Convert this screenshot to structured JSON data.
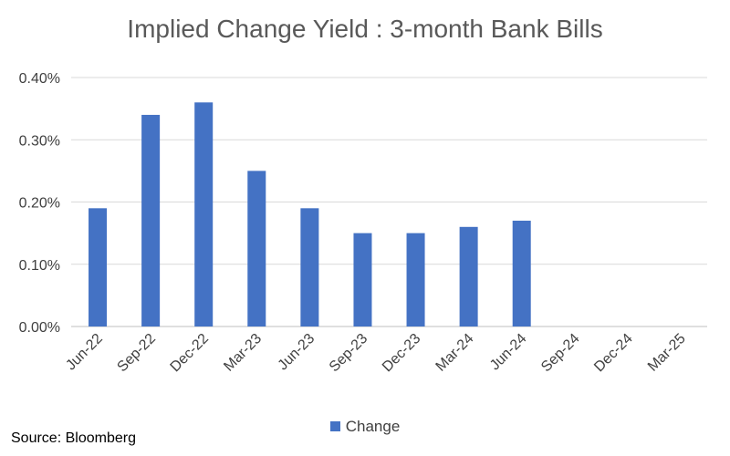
{
  "chart_data": {
    "type": "bar",
    "title": "Implied Change Yield : 3-month Bank Bills",
    "xlabel": "",
    "ylabel": "",
    "categories": [
      "Jun-22",
      "Sep-22",
      "Dec-22",
      "Mar-23",
      "Jun-23",
      "Sep-23",
      "Dec-23",
      "Mar-24",
      "Jun-24",
      "Sep-24",
      "Dec-24",
      "Mar-25"
    ],
    "series": [
      {
        "name": "Change",
        "color": "#4472C4",
        "values": [
          0.19,
          0.34,
          0.36,
          0.25,
          0.19,
          0.15,
          0.15,
          0.16,
          0.17,
          null,
          null,
          null
        ]
      }
    ],
    "ylim": [
      0,
      0.4
    ],
    "y_ticks": [
      "0.00%",
      "0.10%",
      "0.20%",
      "0.30%",
      "0.40%"
    ],
    "y_tick_values": [
      0,
      0.1,
      0.2,
      0.3,
      0.4
    ],
    "grid": true,
    "legend_position": "bottom"
  },
  "source": "Source: Bloomberg"
}
